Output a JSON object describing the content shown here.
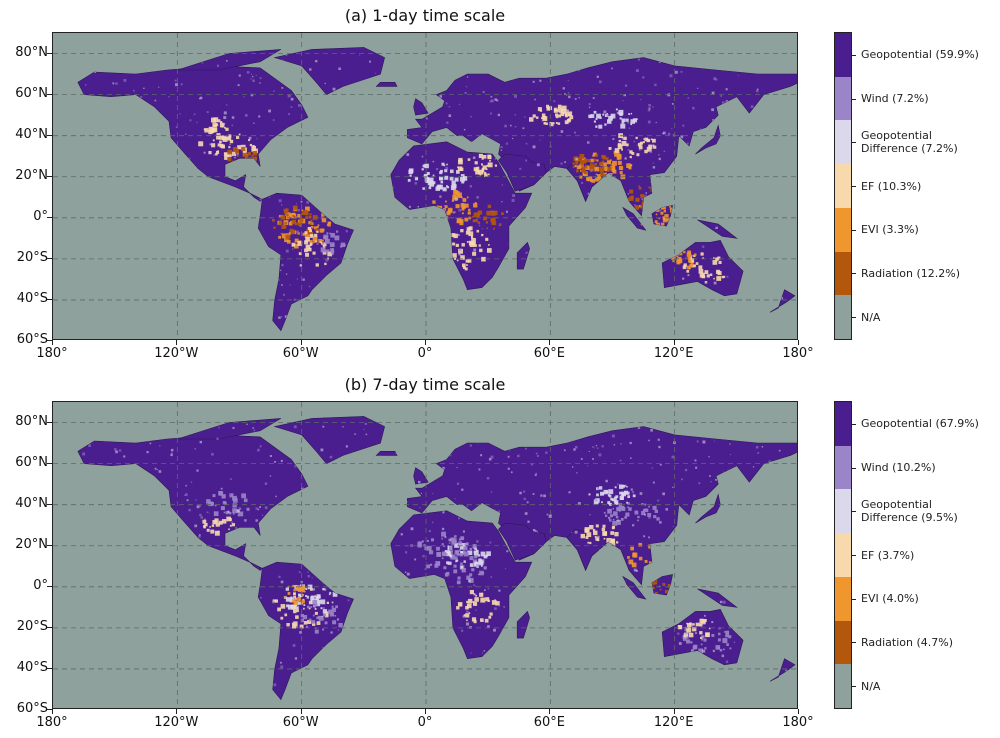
{
  "colors": {
    "ocean": "#8fa19d",
    "geopotential": "#4b1e8f",
    "wind": "#9a85c8",
    "geopotential_difference": "#dcd8ec",
    "ef": "#f8d9ae",
    "evi": "#f0962e",
    "radiation": "#b2570c",
    "na": "#8fa19d",
    "gridline": "#5a6a67"
  },
  "axes": {
    "lat_labels": [
      "80°N",
      "60°N",
      "40°N",
      "20°N",
      "0°",
      "20°S",
      "40°S",
      "60°S"
    ],
    "lon_labels": [
      "180°",
      "120°W",
      "60°W",
      "0°",
      "60°E",
      "120°E",
      "180°"
    ]
  },
  "panels": [
    {
      "title": "(a) 1-day time scale",
      "legend": [
        {
          "label": "Geopotential (59.9%)",
          "key": "geopotential"
        },
        {
          "label": "Wind (7.2%)",
          "key": "wind"
        },
        {
          "label": "Geopotential\nDifference (7.2%)",
          "key": "geopotential_difference"
        },
        {
          "label": "EF (10.3%)",
          "key": "ef"
        },
        {
          "label": "EVI (3.3%)",
          "key": "evi"
        },
        {
          "label": "Radiation (12.2%)",
          "key": "radiation"
        },
        {
          "label": "N/A",
          "key": "na"
        }
      ]
    },
    {
      "title": "(b) 7-day time scale",
      "legend": [
        {
          "label": "Geopotential (67.9%)",
          "key": "geopotential"
        },
        {
          "label": "Wind (10.2%)",
          "key": "wind"
        },
        {
          "label": "Geopotential\nDifference (9.5%)",
          "key": "geopotential_difference"
        },
        {
          "label": "EF (3.7%)",
          "key": "ef"
        },
        {
          "label": "EVI (4.0%)",
          "key": "evi"
        },
        {
          "label": "Radiation (4.7%)",
          "key": "radiation"
        },
        {
          "label": "N/A",
          "key": "na"
        }
      ]
    }
  ]
}
